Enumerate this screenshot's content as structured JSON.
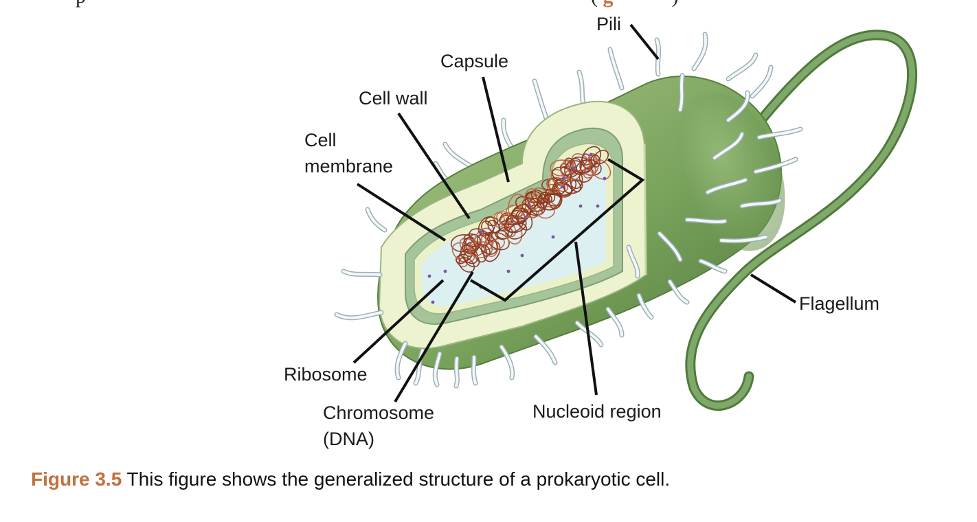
{
  "top_text": {
    "start": "p",
    "paren_open": "(",
    "ref_fragment": "g",
    "paren_close": ")"
  },
  "labels": {
    "pili": "Pili",
    "capsule": "Capsule",
    "cell_wall": "Cell wall",
    "cell_membrane_1": "Cell",
    "cell_membrane_2": "membrane",
    "ribosome": "Ribosome",
    "chromosome_1": "Chromosome",
    "chromosome_2": "(DNA)",
    "nucleoid": "Nucleoid region",
    "flagellum": "Flagellum"
  },
  "caption": {
    "number": "Figure 3.5",
    "text": "This figure shows the generalized structure of a prokaryotic cell."
  },
  "colors": {
    "body_light": "#9fbe7e",
    "body_dark": "#5f8a45",
    "capsule": "#eef3cf",
    "wall": "#a6c49a",
    "membrane": "#e8f0c6",
    "cytoplasm": "#dcf0f2",
    "dna": "#9a4228",
    "ribosome": "#7a55a0",
    "pili": "#eef4f6",
    "pili_edge": "#9aaeb3",
    "flagellum": "#6d9a5a",
    "leader": "#111111",
    "accent": "#c0703e"
  }
}
